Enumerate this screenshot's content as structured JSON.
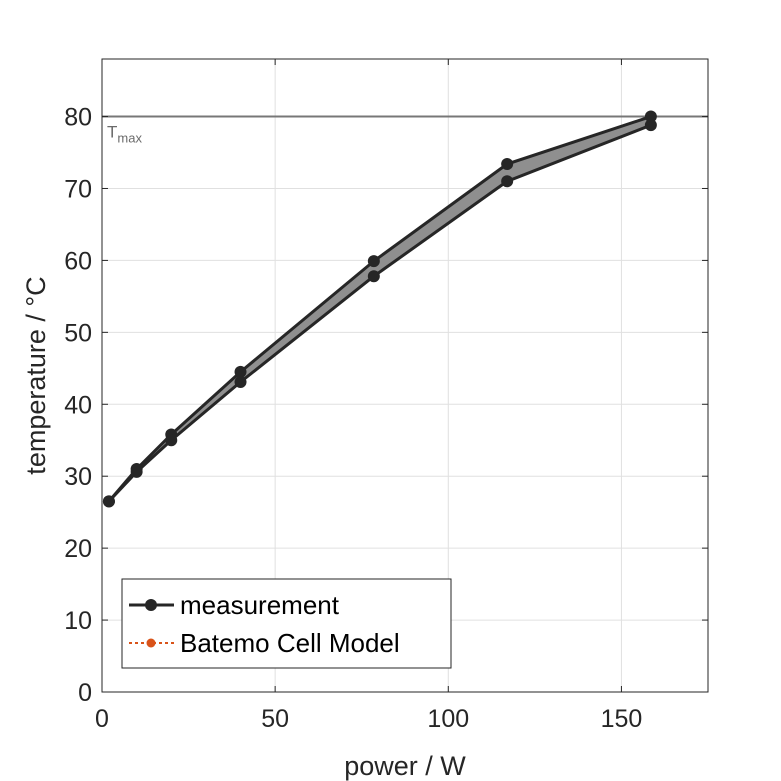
{
  "chart_data": {
    "type": "line",
    "title": "",
    "xlabel": "power / W",
    "ylabel": "temperature / °C",
    "xlim": [
      0,
      175
    ],
    "ylim": [
      0,
      88
    ],
    "xticks": [
      0,
      50,
      100,
      150
    ],
    "yticks": [
      0,
      10,
      20,
      30,
      40,
      50,
      60,
      70,
      80
    ],
    "grid": true,
    "legend_position": "bottom-left",
    "series": [
      {
        "name": "measurement",
        "color": "#262626",
        "marker": "circle",
        "line": "solid",
        "upper": [
          {
            "x": 2,
            "y": 26.5
          },
          {
            "x": 10,
            "y": 31
          },
          {
            "x": 20,
            "y": 35.8
          },
          {
            "x": 40,
            "y": 44.5
          },
          {
            "x": 78.5,
            "y": 59.9
          },
          {
            "x": 117,
            "y": 73.4
          },
          {
            "x": 158.5,
            "y": 80.0
          }
        ],
        "lower": [
          {
            "x": 2,
            "y": 26.5
          },
          {
            "x": 10,
            "y": 30.6
          },
          {
            "x": 20,
            "y": 35.0
          },
          {
            "x": 40,
            "y": 43.1
          },
          {
            "x": 78.5,
            "y": 57.8
          },
          {
            "x": 117,
            "y": 71.0
          },
          {
            "x": 158.5,
            "y": 78.8
          }
        ],
        "band_fill": "#8f8f8f"
      },
      {
        "name": "Batemo Cell Model",
        "color": "#d95319",
        "marker": "circle",
        "line": "dotted",
        "points": []
      }
    ],
    "reference_line": {
      "y": 80,
      "label": "T",
      "label_sub": "max",
      "color": "#777777"
    }
  }
}
